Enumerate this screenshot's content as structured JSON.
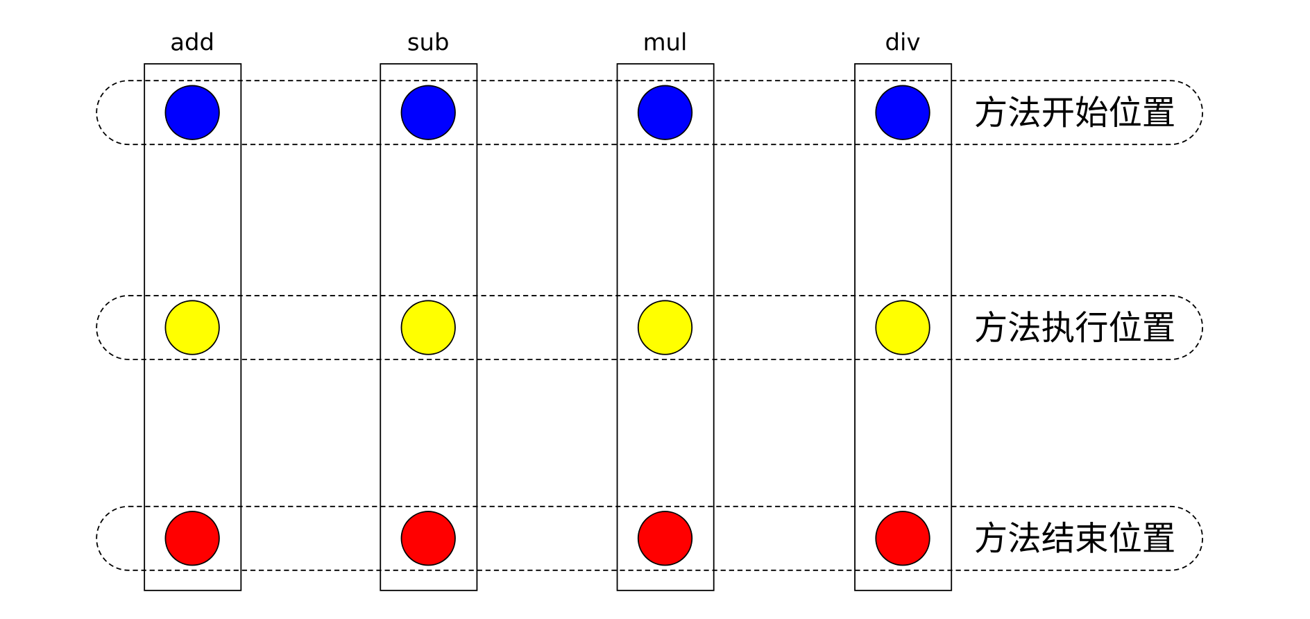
{
  "columns": [
    "add",
    "sub",
    "mul",
    "div"
  ],
  "rows": [
    {
      "label": "方法开始位置",
      "color": "#0000ff"
    },
    {
      "label": "方法执行位置",
      "color": "#ffff00"
    },
    {
      "label": "方法结束位置",
      "color": "#ff0000"
    }
  ]
}
